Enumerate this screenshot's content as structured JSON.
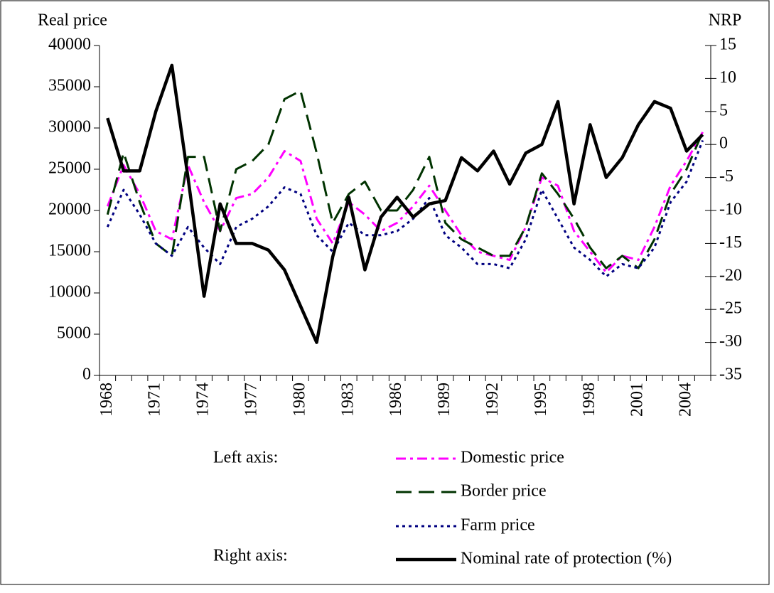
{
  "chart_data": {
    "type": "line",
    "y_axis_title": "Real price",
    "y2_axis_title": "NRP",
    "legend_groups": [
      "Left axis:",
      "Right axis:"
    ],
    "categories": [
      "1968",
      null,
      null,
      "1971",
      null,
      null,
      "1974",
      null,
      null,
      "1977",
      null,
      null,
      "1980",
      null,
      null,
      "1983",
      null,
      null,
      "1986",
      null,
      null,
      "1989",
      null,
      null,
      "1992",
      null,
      null,
      "1995",
      null,
      null,
      "1998",
      null,
      null,
      "2001",
      null,
      null,
      "2004",
      null
    ],
    "series": [
      {
        "name": "Domestic price",
        "color": "#ff00ff",
        "style": "dashdot",
        "values": [
          20500,
          25500,
          22000,
          17500,
          16500,
          25500,
          21000,
          17500,
          21500,
          22000,
          24000,
          27200,
          26000,
          19000,
          16000,
          21000,
          19500,
          17500,
          18500,
          20500,
          23000,
          20000,
          17000,
          15000,
          14500,
          14000,
          18000,
          24000,
          23000,
          17500,
          15000,
          12500,
          14500,
          14000,
          18000,
          23000,
          26000,
          29500
        ]
      },
      {
        "name": "Border price",
        "color": "#003300",
        "style": "longdash",
        "values": [
          19500,
          27000,
          21000,
          16000,
          14500,
          26500,
          26500,
          17500,
          25000,
          26000,
          28000,
          33500,
          34500,
          27000,
          18500,
          22000,
          23500,
          20000,
          20000,
          22500,
          26500,
          18500,
          16500,
          15500,
          14500,
          14500,
          18000,
          24500,
          22000,
          19000,
          15500,
          13000,
          14500,
          13000,
          16500,
          22000,
          25000,
          29500
        ]
      },
      {
        "name": "Farm price",
        "color": "#000080",
        "style": "dot",
        "values": [
          18000,
          22500,
          19500,
          16000,
          14500,
          18000,
          15500,
          13500,
          18000,
          19000,
          20500,
          22800,
          22000,
          17000,
          15000,
          18500,
          17000,
          17000,
          17500,
          19000,
          21500,
          17000,
          15500,
          13500,
          13500,
          13000,
          16500,
          22500,
          19000,
          15500,
          14000,
          12000,
          13500,
          13000,
          15500,
          21000,
          23500,
          28500
        ]
      },
      {
        "name": "Nominal rate of protection (%)",
        "color": "#000000",
        "style": "solid",
        "axis": "y2",
        "values": [
          4,
          -4,
          -4,
          5,
          12,
          -5,
          -23,
          -9,
          -15,
          -15,
          -16,
          -19,
          -24.5,
          -30,
          -17,
          -8,
          -19,
          -11,
          -8,
          -11,
          -9,
          -8.5,
          -2,
          -4,
          -1,
          -6,
          -1.3,
          0,
          6.5,
          -9,
          3,
          -5,
          -2,
          3,
          6.5,
          5.5,
          -1,
          1.5
        ]
      }
    ],
    "ylim": [
      0,
      40000
    ],
    "yticks": [
      0,
      5000,
      10000,
      15000,
      20000,
      25000,
      30000,
      35000,
      40000
    ],
    "y2lim": [
      -35,
      15
    ],
    "y2ticks": [
      -35,
      -30,
      -25,
      -20,
      -15,
      -10,
      -5,
      0,
      5,
      10,
      15
    ]
  }
}
